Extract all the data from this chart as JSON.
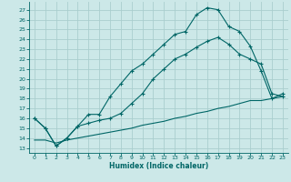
{
  "xlabel": "Humidex (Indice chaleur)",
  "bg_color": "#cce8e8",
  "grid_color": "#aacece",
  "line_color": "#006666",
  "xlim": [
    -0.5,
    23.5
  ],
  "ylim": [
    12.5,
    27.8
  ],
  "xticks": [
    0,
    1,
    2,
    3,
    4,
    5,
    6,
    7,
    8,
    9,
    10,
    11,
    12,
    13,
    14,
    15,
    16,
    17,
    18,
    19,
    20,
    21,
    22,
    23
  ],
  "yticks": [
    13,
    14,
    15,
    16,
    17,
    18,
    19,
    20,
    21,
    22,
    23,
    24,
    25,
    26,
    27
  ],
  "line1_x": [
    0,
    1,
    2,
    3,
    4,
    5,
    6,
    7,
    8,
    9,
    10,
    11,
    12,
    13,
    14,
    15,
    16,
    17,
    18,
    19,
    20,
    21,
    22,
    23
  ],
  "line1_y": [
    16.0,
    15.0,
    13.2,
    14.0,
    15.2,
    16.4,
    16.4,
    18.2,
    19.5,
    20.8,
    21.5,
    22.5,
    23.5,
    24.5,
    24.8,
    26.5,
    27.2,
    27.0,
    25.3,
    24.8,
    23.3,
    20.8,
    18.0,
    18.5
  ],
  "line2_x": [
    0,
    1,
    2,
    3,
    4,
    5,
    6,
    7,
    8,
    9,
    10,
    11,
    12,
    13,
    14,
    15,
    16,
    17,
    18,
    19,
    20,
    21,
    22,
    23
  ],
  "line2_y": [
    16.0,
    15.0,
    13.2,
    14.0,
    15.2,
    15.5,
    15.8,
    16.0,
    16.5,
    17.5,
    18.5,
    20.0,
    21.0,
    22.0,
    22.5,
    23.2,
    23.8,
    24.2,
    23.5,
    22.5,
    22.0,
    21.5,
    18.5,
    18.2
  ],
  "line3_x": [
    0,
    1,
    2,
    3,
    4,
    5,
    6,
    7,
    8,
    9,
    10,
    11,
    12,
    13,
    14,
    15,
    16,
    17,
    18,
    19,
    20,
    21,
    22,
    23
  ],
  "line3_y": [
    13.8,
    13.8,
    13.5,
    13.8,
    14.0,
    14.2,
    14.4,
    14.6,
    14.8,
    15.0,
    15.3,
    15.5,
    15.7,
    16.0,
    16.2,
    16.5,
    16.7,
    17.0,
    17.2,
    17.5,
    17.8,
    17.8,
    18.0,
    18.2
  ]
}
